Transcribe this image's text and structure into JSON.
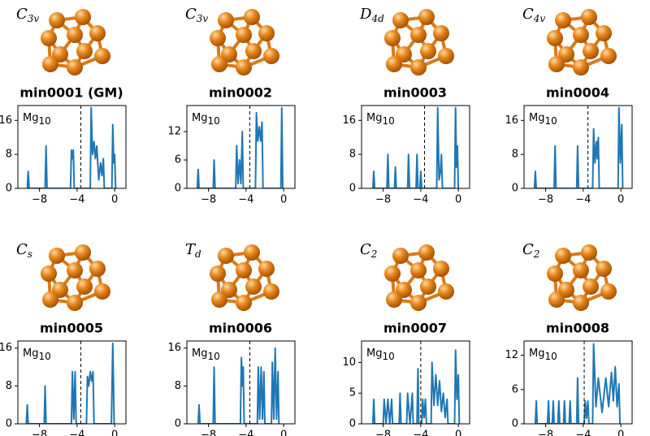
{
  "chart_data": [
    {
      "type": "line",
      "symmetry": {
        "base": "C",
        "sub": "3v"
      },
      "title": "min0001 (GM)",
      "label": {
        "base": "Mg",
        "sub": "10"
      },
      "color": "#1f77b4",
      "dashed_line_x": -3.6,
      "xlim": [
        -10.3,
        1.2
      ],
      "ylim": [
        0,
        19.5
      ],
      "xticks": [
        {
          "value": -8,
          "label": "−8"
        },
        {
          "value": -4,
          "label": "−4"
        },
        0
      ],
      "yticks": [
        0,
        8,
        16
      ],
      "x": [
        -9.3,
        -9.2,
        -9.1,
        -7.4,
        -7.3,
        -7.2,
        -4.7,
        -4.6,
        -4.5,
        -4.4,
        -4.3,
        -2.6,
        -2.5,
        -2.35,
        -2.2,
        -2.05,
        -1.9,
        -1.7,
        -1.5,
        -1.35,
        -1.2,
        -1.1,
        -0.3,
        -0.2,
        -0.1,
        0,
        0.1
      ],
      "values": [
        0,
        4,
        0,
        0,
        10,
        0,
        0,
        9,
        7,
        9,
        0,
        0,
        19,
        8,
        11,
        7,
        10,
        2,
        6,
        3,
        7,
        0,
        0,
        15,
        6,
        8,
        0
      ]
    },
    {
      "type": "line",
      "symmetry": {
        "base": "C",
        "sub": "3v"
      },
      "title": "min0002",
      "label": {
        "base": "Mg",
        "sub": "10"
      },
      "color": "#1f77b4",
      "dashed_line_x": -3.6,
      "xlim": [
        -10.3,
        1.2
      ],
      "ylim": [
        0,
        17.5
      ],
      "xticks": [
        {
          "value": -8,
          "label": "−8"
        },
        {
          "value": -4,
          "label": "−4"
        },
        0
      ],
      "yticks": [
        0,
        6,
        12
      ],
      "x": [
        -9.2,
        -9.1,
        -9.0,
        -7.5,
        -7.4,
        -7.3,
        -5.1,
        -5.0,
        -4.85,
        -4.7,
        -4.55,
        -4.4,
        -4.3,
        -3.0,
        -2.9,
        -2.75,
        -2.6,
        -2.45,
        -2.3,
        -2.2,
        -0.3,
        -0.2,
        -0.1
      ],
      "values": [
        0,
        4,
        0,
        0,
        6,
        0,
        0,
        9,
        1,
        6,
        1,
        12,
        0,
        0,
        16,
        10,
        13,
        10,
        14,
        0,
        0,
        17,
        0
      ]
    },
    {
      "type": "line",
      "symmetry": {
        "base": "D",
        "sub": "4d"
      },
      "title": "min0003",
      "label": {
        "base": "Mg",
        "sub": "10"
      },
      "color": "#1f77b4",
      "dashed_line_x": -3.6,
      "xlim": [
        -10.3,
        1.2
      ],
      "ylim": [
        0,
        19.5
      ],
      "xticks": [
        {
          "value": -8,
          "label": "−8"
        },
        {
          "value": -4,
          "label": "−4"
        },
        0
      ],
      "yticks": [
        0,
        8,
        16
      ],
      "x": [
        -9.1,
        -9.0,
        -8.9,
        -7.6,
        -7.5,
        -7.4,
        -6.8,
        -6.7,
        -6.6,
        -5.4,
        -5.3,
        -5.2,
        -4.5,
        -4.4,
        -4.3,
        -4.1,
        -4.0,
        -3.9,
        -2.3,
        -2.2,
        -2.05,
        -1.9,
        -1.8,
        -1.7,
        -0.4,
        -0.3,
        -0.2,
        -0.1,
        0
      ],
      "values": [
        0,
        4,
        0,
        0,
        8,
        0,
        0,
        5,
        0,
        0,
        8,
        0,
        0,
        8,
        0,
        0,
        4,
        0,
        0,
        19,
        2,
        4,
        8,
        0,
        0,
        19,
        5,
        10,
        0
      ]
    },
    {
      "type": "line",
      "symmetry": {
        "base": "C",
        "sub": "4v"
      },
      "title": "min0004",
      "label": {
        "base": "Mg",
        "sub": "10"
      },
      "color": "#1f77b4",
      "dashed_line_x": -3.5,
      "xlim": [
        -10.3,
        1.2
      ],
      "ylim": [
        0,
        19.5
      ],
      "xticks": [
        {
          "value": -8,
          "label": "−8"
        },
        {
          "value": -4,
          "label": "−4"
        },
        0
      ],
      "yticks": [
        0,
        8,
        16
      ],
      "x": [
        -9.2,
        -9.1,
        -9.0,
        -7.1,
        -7.0,
        -6.9,
        -4.7,
        -4.6,
        -4.5,
        -3.0,
        -2.9,
        -2.75,
        -2.6,
        -2.5,
        -2.4,
        -2.3,
        -0.3,
        -0.2,
        -0.05,
        0.1,
        0.2
      ],
      "values": [
        0,
        4,
        0,
        0,
        10,
        0,
        0,
        10,
        0,
        0,
        14,
        6,
        11,
        7,
        12,
        0,
        0,
        19,
        6,
        15,
        0
      ]
    },
    {
      "type": "line",
      "symmetry": {
        "base": "C",
        "sub": "s"
      },
      "title": "min0005",
      "label": {
        "base": "Mg",
        "sub": "10"
      },
      "color": "#1f77b4",
      "dashed_line_x": -3.6,
      "xlim": [
        -10.3,
        1.2
      ],
      "ylim": [
        0,
        17.5
      ],
      "xticks": [
        {
          "value": -8,
          "label": "−8"
        },
        {
          "value": -4,
          "label": "−4"
        },
        0
      ],
      "yticks": [
        0,
        8,
        16
      ],
      "x": [
        -9.4,
        -9.3,
        -9.2,
        -7.5,
        -7.4,
        -7.3,
        -4.6,
        -4.5,
        -4.35,
        -4.2,
        -4.1,
        -3.0,
        -2.9,
        -2.75,
        -2.6,
        -2.45,
        -2.3,
        -2.2,
        -0.35,
        -0.2,
        -0.05
      ],
      "values": [
        0,
        4,
        0,
        0,
        8,
        0,
        0,
        11,
        1,
        11,
        0,
        0,
        10,
        8,
        11,
        9,
        11,
        0,
        0,
        17,
        0
      ]
    },
    {
      "type": "line",
      "symmetry": {
        "base": "T",
        "sub": "d"
      },
      "title": "min0006",
      "label": {
        "base": "Mg",
        "sub": "10"
      },
      "color": "#1f77b4",
      "dashed_line_x": -3.6,
      "xlim": [
        -10.3,
        1.2
      ],
      "ylim": [
        0,
        17.5
      ],
      "xticks": [
        {
          "value": -8,
          "label": "−8"
        },
        {
          "value": -4,
          "label": "−4"
        },
        0
      ],
      "yticks": [
        0,
        8,
        16
      ],
      "x": [
        -9.1,
        -9.0,
        -8.9,
        -7.5,
        -7.4,
        -7.3,
        -4.6,
        -4.5,
        -4.4,
        -4.3,
        -4.2,
        -2.8,
        -2.7,
        -2.55,
        -2.4,
        -2.25,
        -2.1,
        -2.0,
        -1.3,
        -1.2,
        -1.05,
        -0.9,
        -0.75,
        -0.6,
        -0.5
      ],
      "values": [
        0,
        4,
        0,
        0,
        12,
        0,
        0,
        14,
        8,
        12,
        0,
        0,
        12,
        1,
        12,
        1,
        11,
        0,
        0,
        13,
        1,
        16,
        1,
        11,
        0
      ]
    },
    {
      "type": "line",
      "symmetry": {
        "base": "C",
        "sub": "2"
      },
      "title": "min0007",
      "label": {
        "base": "Mg",
        "sub": "10"
      },
      "color": "#1f77b4",
      "dashed_line_x": -4.0,
      "xlim": [
        -10.3,
        1.2
      ],
      "ylim": [
        0,
        13.5
      ],
      "xticks": [
        {
          "value": -8,
          "label": "−8"
        },
        {
          "value": -4,
          "label": "−4"
        },
        0
      ],
      "yticks": [
        0,
        5,
        10
      ],
      "x": [
        -9.1,
        -9.0,
        -8.9,
        -8.0,
        -7.9,
        -7.7,
        -7.5,
        -7.3,
        -7.1,
        -7.0,
        -6.3,
        -6.2,
        -6.1,
        -5.5,
        -5.4,
        -5.15,
        -4.9,
        -4.8,
        -4.4,
        -4.3,
        -4.2,
        -3.9,
        -3.8,
        -3.65,
        -3.5,
        -3.4,
        -2.9,
        -2.8,
        -2.6,
        -2.4,
        -2.2,
        -2.0,
        -1.8,
        -1.6,
        -1.4,
        -1.2,
        -1.1,
        -0.4,
        -0.3,
        -0.15,
        0,
        0.1
      ],
      "values": [
        0,
        4,
        0,
        0,
        4,
        0,
        4,
        0,
        4,
        0,
        0,
        5,
        0,
        0,
        5,
        0,
        5,
        0,
        0,
        9,
        0,
        0,
        4,
        1,
        4,
        0,
        0,
        10,
        3,
        8,
        3,
        7,
        2,
        5,
        1,
        4,
        0,
        0,
        12,
        4,
        8,
        0
      ]
    },
    {
      "type": "line",
      "symmetry": {
        "base": "C",
        "sub": "2"
      },
      "title": "min0008",
      "label": {
        "base": "Mg",
        "sub": "10"
      },
      "color": "#1f77b4",
      "dashed_line_x": -3.9,
      "xlim": [
        -10.3,
        1.2
      ],
      "ylim": [
        0,
        14.5
      ],
      "xticks": [
        {
          "value": -8,
          "label": "−8"
        },
        {
          "value": -4,
          "label": "−4"
        },
        0
      ],
      "yticks": [
        0,
        6,
        12
      ],
      "x": [
        -9.1,
        -9.0,
        -8.9,
        -7.8,
        -7.7,
        -7.6,
        -7.3,
        -7.2,
        -7.1,
        -6.7,
        -6.6,
        -6.5,
        -6.1,
        -6.0,
        -5.9,
        -5.5,
        -5.4,
        -5.3,
        -4.7,
        -4.6,
        -4.5,
        -3.9,
        -3.8,
        -3.65,
        -3.5,
        -3.4,
        -3.0,
        -2.9,
        -2.65,
        -2.4,
        -2.0,
        -1.6,
        -1.3,
        -1.0,
        -0.8,
        -0.6,
        -0.4,
        -0.2,
        -0.1
      ],
      "values": [
        0,
        4,
        0,
        0,
        4,
        0,
        0,
        4,
        0,
        0,
        4,
        0,
        0,
        4,
        0,
        0,
        4,
        0,
        0,
        8,
        0,
        0,
        4,
        1,
        4,
        0,
        0,
        14,
        3,
        8,
        2,
        8,
        3,
        9,
        4,
        10,
        3,
        7,
        0
      ]
    }
  ]
}
